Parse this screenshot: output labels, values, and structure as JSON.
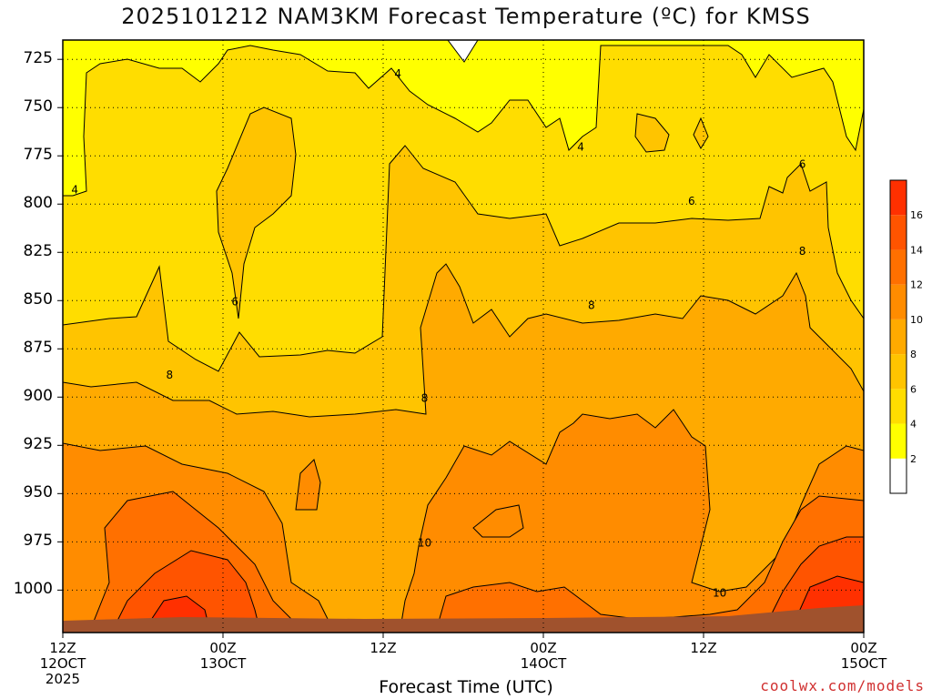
{
  "chart_data": {
    "type": "heatmap",
    "subtype": "filled-contour",
    "title": "2025101212 NAM3KM Forecast Temperature (ºC) for KMSS",
    "xlabel": "Forecast Time (UTC)",
    "ylabel": "",
    "y_axis": {
      "ticks": [
        725,
        750,
        775,
        800,
        825,
        850,
        875,
        900,
        925,
        950,
        975,
        1000
      ],
      "range": [
        1022,
        715
      ],
      "grid": true
    },
    "x_axis": {
      "ticks": [
        {
          "time": "12Z",
          "date": "12OCT",
          "year": "2025",
          "hour": 0
        },
        {
          "time": "00Z",
          "date": "13OCT",
          "year": "",
          "hour": 12
        },
        {
          "time": "12Z",
          "date": "",
          "year": "",
          "hour": 24
        },
        {
          "time": "00Z",
          "date": "14OCT",
          "year": "",
          "hour": 36
        },
        {
          "time": "12Z",
          "date": "",
          "year": "",
          "hour": 48
        },
        {
          "time": "00Z",
          "date": "15OCT",
          "year": "",
          "hour": 60
        }
      ],
      "range": [
        0,
        60
      ],
      "grid": true
    },
    "colorbar": {
      "levels": [
        2,
        4,
        6,
        8,
        10,
        12,
        14,
        16
      ],
      "colors": [
        "#ffffff",
        "#ffff00",
        "#ffdd00",
        "#ffc400",
        "#ffaa00",
        "#ff8c00",
        "#ff7000",
        "#ff5400",
        "#ff3000"
      ]
    },
    "contour_labels": [
      {
        "value": "4",
        "hour": 0.9,
        "p": 792
      },
      {
        "value": "4",
        "hour": 25.1,
        "p": 732
      },
      {
        "value": "4",
        "hour": 38.8,
        "p": 770
      },
      {
        "value": "6",
        "hour": 12.9,
        "p": 850
      },
      {
        "value": "6",
        "hour": 47.1,
        "p": 798
      },
      {
        "value": "6",
        "hour": 55.4,
        "p": 779
      },
      {
        "value": "8",
        "hour": 8.0,
        "p": 888
      },
      {
        "value": "8",
        "hour": 27.1,
        "p": 900
      },
      {
        "value": "8",
        "hour": 39.6,
        "p": 852
      },
      {
        "value": "8",
        "hour": 55.4,
        "p": 824
      },
      {
        "value": "10",
        "hour": 27.1,
        "p": 975
      },
      {
        "value": "10",
        "hour": 49.2,
        "p": 1001
      }
    ],
    "bands_by_pressure": [
      {
        "p": 725,
        "temp": 4.5
      },
      {
        "p": 775,
        "temp": 5
      },
      {
        "p": 825,
        "temp": 6
      },
      {
        "p": 875,
        "temp": 7.5
      },
      {
        "p": 925,
        "temp": 9
      },
      {
        "p": 975,
        "temp": 11
      },
      {
        "p": 1000,
        "temp": 13
      }
    ]
  },
  "credit": "coolwx.com/models"
}
